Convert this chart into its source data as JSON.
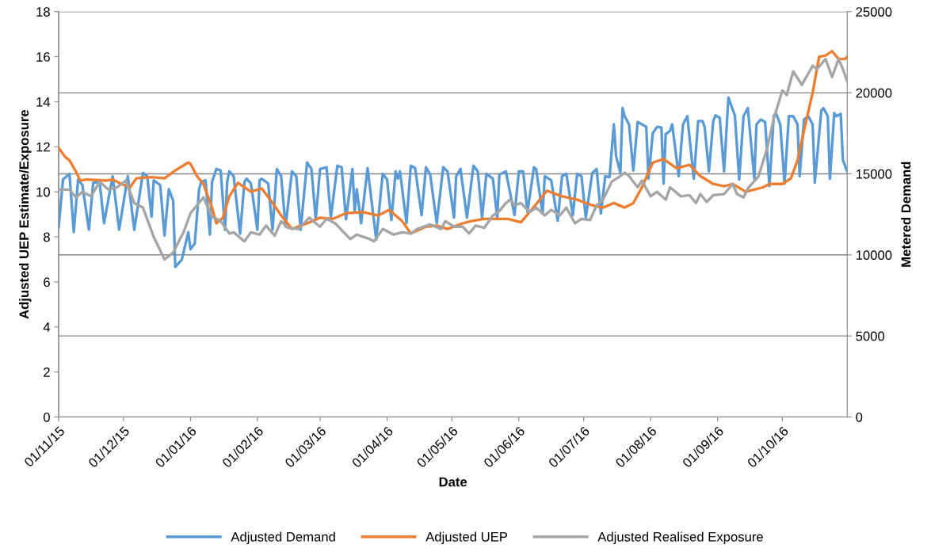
{
  "chart_data": {
    "type": "line",
    "xlabel": "Date",
    "ylabel": "Adjusted UEP Estimate/Exposure",
    "y2label": "Metered Demand",
    "xlim": [
      "2015-11-01",
      "2016-10-31"
    ],
    "xticks": [
      {
        "value": "2015-11-01",
        "label": "01/11/15"
      },
      {
        "value": "2015-12-01",
        "label": "01/12/15"
      },
      {
        "value": "2016-01-01",
        "label": "01/01/16"
      },
      {
        "value": "2016-02-01",
        "label": "01/02/16"
      },
      {
        "value": "2016-03-01",
        "label": "01/03/16"
      },
      {
        "value": "2016-04-01",
        "label": "01/04/16"
      },
      {
        "value": "2016-05-01",
        "label": "01/05/16"
      },
      {
        "value": "2016-06-01",
        "label": "01/06/16"
      },
      {
        "value": "2016-07-01",
        "label": "01/07/16"
      },
      {
        "value": "2016-08-01",
        "label": "01/08/16"
      },
      {
        "value": "2016-09-01",
        "label": "01/09/16"
      },
      {
        "value": "2016-10-01",
        "label": "01/10/16"
      }
    ],
    "ylim": [
      0,
      18
    ],
    "yticks": [
      0,
      2,
      4,
      6,
      8,
      10,
      12,
      14,
      16,
      18
    ],
    "y2lim": [
      0,
      25000
    ],
    "y2ticks": [
      0,
      5000,
      10000,
      15000,
      20000,
      25000
    ],
    "grid": "y2",
    "legend": "bottom",
    "marker": "none",
    "line_style": "solid",
    "series": [
      {
        "name": "Adjusted Demand",
        "color": "#5b9bd5",
        "axis": "y2",
        "x": [
          "2015-11-01",
          "2015-11-03",
          "2015-11-06",
          "2015-11-08",
          "2015-11-10",
          "2015-11-12",
          "2015-11-15",
          "2015-11-17",
          "2015-11-20",
          "2015-11-22",
          "2015-11-26",
          "2015-11-29",
          "2015-12-03",
          "2015-12-06",
          "2015-12-10",
          "2015-12-12",
          "2015-12-14",
          "2015-12-15",
          "2015-12-18",
          "2015-12-20",
          "2015-12-22",
          "2015-12-24",
          "2015-12-25",
          "2015-12-28",
          "2015-12-31",
          "2016-01-01",
          "2016-01-03",
          "2016-01-05",
          "2016-01-06",
          "2016-01-08",
          "2016-01-10",
          "2016-01-11",
          "2016-01-13",
          "2016-01-15",
          "2016-01-17",
          "2016-01-18",
          "2016-01-19",
          "2016-01-21",
          "2016-01-24",
          "2016-01-26",
          "2016-01-27",
          "2016-01-29",
          "2016-02-01",
          "2016-02-02",
          "2016-02-03",
          "2016-02-06",
          "2016-02-08",
          "2016-02-10",
          "2016-02-12",
          "2016-02-14",
          "2016-02-17",
          "2016-02-19",
          "2016-02-21",
          "2016-02-24",
          "2016-02-26",
          "2016-02-28",
          "2016-03-01",
          "2016-03-04",
          "2016-03-06",
          "2016-03-09",
          "2016-03-11",
          "2016-03-13",
          "2016-03-16",
          "2016-03-17",
          "2016-03-18",
          "2016-03-20",
          "2016-03-23",
          "2016-03-27",
          "2016-03-30",
          "2016-04-01",
          "2016-04-03",
          "2016-04-05",
          "2016-04-06",
          "2016-04-07",
          "2016-04-10",
          "2016-04-12",
          "2016-04-14",
          "2016-04-17",
          "2016-04-19",
          "2016-04-21",
          "2016-04-24",
          "2016-04-27",
          "2016-04-29",
          "2016-05-02",
          "2016-05-03",
          "2016-05-05",
          "2016-05-08",
          "2016-05-11",
          "2016-05-13",
          "2016-05-15",
          "2016-05-17",
          "2016-05-20",
          "2016-05-22",
          "2016-05-23",
          "2016-05-26",
          "2016-05-30",
          "2016-06-01",
          "2016-06-03",
          "2016-06-05",
          "2016-06-08",
          "2016-06-09",
          "2016-06-12",
          "2016-06-13",
          "2016-06-16",
          "2016-06-19",
          "2016-06-21",
          "2016-06-23",
          "2016-06-26",
          "2016-06-28",
          "2016-06-30",
          "2016-07-02",
          "2016-07-05",
          "2016-07-07",
          "2016-07-09",
          "2016-07-11",
          "2016-07-13",
          "2016-07-15",
          "2016-07-16",
          "2016-07-18",
          "2016-07-19",
          "2016-07-20",
          "2016-07-22",
          "2016-07-24",
          "2016-07-26",
          "2016-07-30",
          "2016-07-31",
          "2016-08-02",
          "2016-08-04",
          "2016-08-06",
          "2016-08-07",
          "2016-08-08",
          "2016-08-10",
          "2016-08-11",
          "2016-08-14",
          "2016-08-16",
          "2016-08-18",
          "2016-08-21",
          "2016-08-23",
          "2016-08-25",
          "2016-08-26",
          "2016-08-28",
          "2016-08-30",
          "2016-08-31",
          "2016-09-02",
          "2016-09-04",
          "2016-09-06",
          "2016-09-09",
          "2016-09-11",
          "2016-09-13",
          "2016-09-15",
          "2016-09-18",
          "2016-09-19",
          "2016-09-21",
          "2016-09-23",
          "2016-09-25",
          "2016-09-27",
          "2016-09-28",
          "2016-09-30",
          "2016-10-02",
          "2016-10-04",
          "2016-10-06",
          "2016-10-08",
          "2016-10-09",
          "2016-10-11",
          "2016-10-13",
          "2016-10-15",
          "2016-10-16",
          "2016-10-19",
          "2016-10-20",
          "2016-10-22",
          "2016-10-23",
          "2016-10-25",
          "2016-10-26",
          "2016-10-28",
          "2016-10-29",
          "2016-10-31"
        ],
        "values": [
          11700,
          14650,
          15000,
          11400,
          14650,
          14300,
          11550,
          14450,
          14450,
          11950,
          14850,
          11550,
          14850,
          11550,
          15050,
          14850,
          12350,
          14600,
          14300,
          11200,
          14050,
          13350,
          9250,
          9700,
          11400,
          10350,
          10700,
          14050,
          14500,
          14600,
          11250,
          14500,
          15300,
          15200,
          11550,
          14500,
          15150,
          14850,
          11300,
          14500,
          14700,
          14400,
          11550,
          14600,
          14700,
          14400,
          11550,
          15300,
          14850,
          11750,
          15150,
          14850,
          11550,
          15700,
          15300,
          12200,
          15300,
          15400,
          12300,
          15500,
          15400,
          12200,
          15300,
          12700,
          14050,
          11950,
          15350,
          10950,
          15000,
          14650,
          12150,
          15150,
          14700,
          15150,
          11950,
          15500,
          15350,
          12450,
          15400,
          14950,
          11950,
          15400,
          15150,
          12300,
          14850,
          15300,
          12300,
          15500,
          15150,
          12300,
          15000,
          14700,
          12300,
          14950,
          15150,
          12450,
          15150,
          15150,
          12650,
          15400,
          15300,
          12550,
          14850,
          14600,
          12100,
          14850,
          15000,
          12450,
          15000,
          14850,
          12300,
          15050,
          15300,
          12550,
          14850,
          14800,
          18050,
          16100,
          15050,
          19050,
          18550,
          18050,
          15200,
          18200,
          17900,
          14700,
          17500,
          17900,
          17850,
          14400,
          17450,
          17650,
          18050,
          14850,
          18050,
          18550,
          14700,
          18250,
          18250,
          17900,
          15150,
          18250,
          18600,
          18450,
          15150,
          19700,
          18600,
          14650,
          18550,
          19050,
          14700,
          18050,
          18350,
          18200,
          14250,
          18550,
          18750,
          18050,
          14400,
          18550,
          18550,
          18050,
          14850,
          18350,
          18550,
          18050,
          14450,
          18900,
          19050,
          18550,
          14700,
          18750,
          18550,
          18700,
          15850,
          15150
        ]
      },
      {
        "name": "Adjusted UEP",
        "color": "#ed7d31",
        "x": [
          "2015-11-01",
          "2015-11-04",
          "2015-11-06",
          "2015-11-09",
          "2015-11-11",
          "2015-11-14",
          "2015-11-23",
          "2015-11-26",
          "2015-11-30",
          "2015-12-04",
          "2015-12-07",
          "2015-12-14",
          "2015-12-20",
          "2015-12-25",
          "2015-12-31",
          "2016-01-01",
          "2016-01-04",
          "2016-01-07",
          "2016-01-11",
          "2016-01-13",
          "2016-01-16",
          "2016-01-19",
          "2016-01-23",
          "2016-01-29",
          "2016-02-03",
          "2016-02-07",
          "2016-02-12",
          "2016-02-17",
          "2016-02-24",
          "2016-03-01",
          "2016-03-07",
          "2016-03-13",
          "2016-03-21",
          "2016-03-28",
          "2016-04-02",
          "2016-04-08",
          "2016-04-12",
          "2016-04-19",
          "2016-04-24",
          "2016-04-29",
          "2016-05-06",
          "2016-05-10",
          "2016-05-16",
          "2016-05-27",
          "2016-06-02",
          "2016-06-09",
          "2016-06-14",
          "2016-06-21",
          "2016-06-28",
          "2016-07-05",
          "2016-07-10",
          "2016-07-15",
          "2016-07-20",
          "2016-07-24",
          "2016-07-28",
          "2016-08-02",
          "2016-08-07",
          "2016-08-13",
          "2016-08-19",
          "2016-08-24",
          "2016-08-30",
          "2016-09-04",
          "2016-09-08",
          "2016-09-14",
          "2016-09-22",
          "2016-09-25",
          "2016-10-01",
          "2016-10-05",
          "2016-10-08",
          "2016-10-12",
          "2016-10-15",
          "2016-10-18",
          "2016-10-21",
          "2016-10-24",
          "2016-10-27",
          "2016-10-30",
          "2016-10-31"
        ],
        "values": [
          11.95,
          11.55,
          11.4,
          10.9,
          10.5,
          10.55,
          10.5,
          10.55,
          10.35,
          10.2,
          10.6,
          10.65,
          10.6,
          10.95,
          11.3,
          11.25,
          10.7,
          10.35,
          9.3,
          8.6,
          8.85,
          9.8,
          10.4,
          10.0,
          10.15,
          9.65,
          8.95,
          8.35,
          8.6,
          8.85,
          8.8,
          9.05,
          9.1,
          8.95,
          9.2,
          8.7,
          8.15,
          8.45,
          8.5,
          8.35,
          8.6,
          8.7,
          8.8,
          8.8,
          8.65,
          9.45,
          10.05,
          9.8,
          9.65,
          9.4,
          9.3,
          9.5,
          9.3,
          9.5,
          10.2,
          11.3,
          11.45,
          11.05,
          11.2,
          10.7,
          10.35,
          10.25,
          10.35,
          10.0,
          10.2,
          10.35,
          10.35,
          10.6,
          11.4,
          13.15,
          14.4,
          16.0,
          16.05,
          16.25,
          15.9,
          15.9,
          16.0
        ]
      },
      {
        "name": "Adjusted Realised Exposure",
        "color": "#a5a5a5",
        "x": [
          "2015-11-01",
          "2015-11-06",
          "2015-11-09",
          "2015-11-12",
          "2015-11-16",
          "2015-11-20",
          "2015-11-24",
          "2015-11-28",
          "2015-12-02",
          "2015-12-06",
          "2015-12-10",
          "2015-12-15",
          "2015-12-20",
          "2015-12-24",
          "2015-12-29",
          "2016-01-01",
          "2016-01-07",
          "2016-01-11",
          "2016-01-15",
          "2016-01-19",
          "2016-01-21",
          "2016-01-26",
          "2016-01-29",
          "2016-02-02",
          "2016-02-05",
          "2016-02-09",
          "2016-02-12",
          "2016-02-15",
          "2016-02-20",
          "2016-02-25",
          "2016-03-01",
          "2016-03-04",
          "2016-03-08",
          "2016-03-15",
          "2016-03-18",
          "2016-03-24",
          "2016-03-26",
          "2016-03-30",
          "2016-04-04",
          "2016-04-08",
          "2016-04-12",
          "2016-04-15",
          "2016-04-21",
          "2016-04-26",
          "2016-04-28",
          "2016-05-02",
          "2016-05-06",
          "2016-05-09",
          "2016-05-12",
          "2016-05-16",
          "2016-05-20",
          "2016-05-23",
          "2016-05-26",
          "2016-05-28",
          "2016-05-30",
          "2016-06-02",
          "2016-06-06",
          "2016-06-09",
          "2016-06-13",
          "2016-06-16",
          "2016-06-20",
          "2016-06-23",
          "2016-06-27",
          "2016-06-30",
          "2016-07-04",
          "2016-07-07",
          "2016-07-10",
          "2016-07-14",
          "2016-07-18",
          "2016-07-20",
          "2016-07-22",
          "2016-07-26",
          "2016-07-28",
          "2016-08-01",
          "2016-08-04",
          "2016-08-08",
          "2016-08-10",
          "2016-08-15",
          "2016-08-19",
          "2016-08-22",
          "2016-08-24",
          "2016-08-27",
          "2016-08-30",
          "2016-09-04",
          "2016-09-08",
          "2016-09-10",
          "2016-09-13",
          "2016-09-15",
          "2016-09-20",
          "2016-09-24",
          "2016-09-27",
          "2016-10-01",
          "2016-10-03",
          "2016-10-06",
          "2016-10-10",
          "2016-10-15",
          "2016-10-17",
          "2016-10-21",
          "2016-10-24",
          "2016-10-27",
          "2016-10-29",
          "2016-10-31"
        ],
        "values": [
          10.1,
          10.1,
          9.75,
          10.0,
          9.8,
          10.45,
          10.1,
          10.2,
          10.5,
          9.5,
          9.3,
          8.0,
          7.0,
          7.3,
          8.25,
          9.05,
          9.75,
          8.9,
          8.7,
          8.15,
          8.2,
          7.8,
          8.2,
          8.1,
          8.5,
          8.05,
          8.7,
          8.4,
          8.35,
          8.85,
          8.45,
          8.8,
          8.6,
          7.9,
          8.1,
          7.9,
          7.8,
          8.35,
          8.1,
          8.2,
          8.15,
          8.35,
          8.55,
          8.35,
          8.7,
          8.45,
          8.45,
          8.15,
          8.5,
          8.4,
          8.95,
          9.15,
          9.5,
          9.65,
          9.4,
          9.5,
          9.1,
          9.3,
          8.95,
          9.2,
          8.95,
          9.3,
          8.6,
          8.8,
          8.75,
          9.4,
          9.65,
          10.45,
          10.7,
          10.85,
          10.7,
          10.2,
          10.5,
          9.8,
          10.0,
          9.65,
          10.2,
          9.8,
          9.85,
          9.5,
          9.9,
          9.55,
          9.85,
          9.9,
          10.35,
          9.9,
          9.75,
          10.15,
          10.7,
          11.95,
          13.25,
          14.5,
          14.3,
          15.35,
          14.75,
          15.6,
          15.45,
          15.9,
          15.1,
          15.9,
          15.45,
          14.9
        ]
      }
    ]
  }
}
